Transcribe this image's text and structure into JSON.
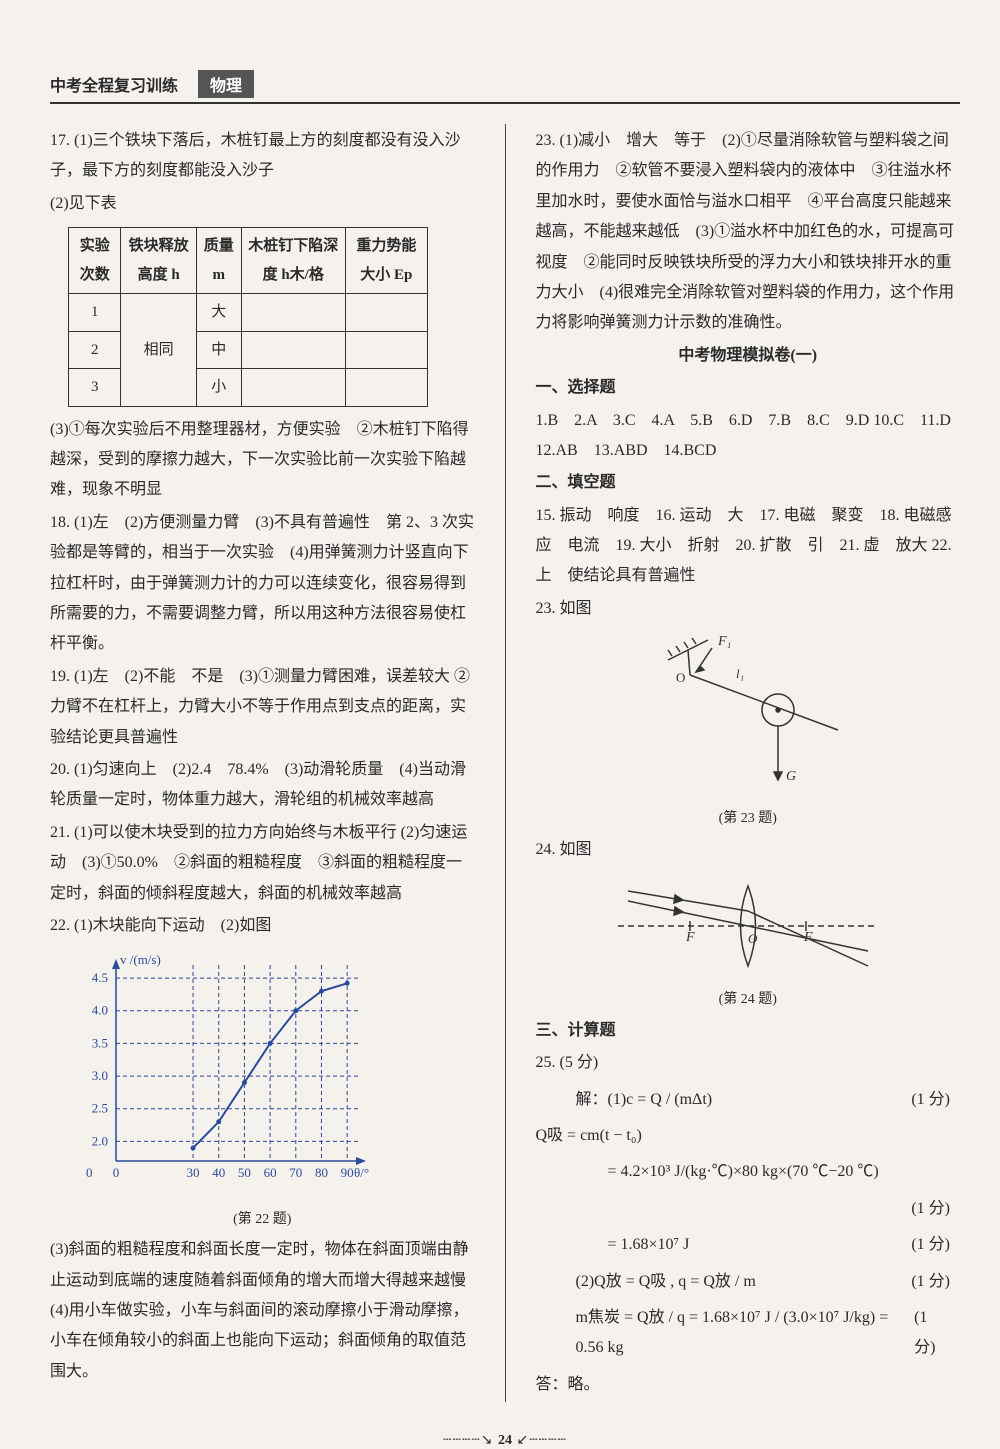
{
  "header": {
    "title": "中考全程复习训练",
    "subject": "物理"
  },
  "left": {
    "q17": {
      "p1": "17. (1)三个铁块下落后，木桩钉最上方的刻度都没有没入沙子，最下方的刻度都能没入沙子",
      "p2": "(2)见下表",
      "table": {
        "headers": [
          "实验次数",
          "铁块释放高度 h",
          "质量 m",
          "木桩钉下陷深度 h木/格",
          "重力势能大小 Ep"
        ],
        "rows": [
          [
            "1",
            "",
            "大",
            "",
            ""
          ],
          [
            "2",
            "相同",
            "中",
            "",
            ""
          ],
          [
            "3",
            "",
            "小",
            "",
            ""
          ]
        ]
      },
      "p3": "(3)①每次实验后不用整理器材，方便实验　②木桩钉下陷得越深，受到的摩擦力越大，下一次实验比前一次实验下陷越难，现象不明显"
    },
    "q18": "18. (1)左　(2)方便测量力臂　(3)不具有普遍性　第 2、3 次实验都是等臂的，相当于一次实验　(4)用弹簧测力计竖直向下拉杠杆时，由于弹簧测力计的力可以连续变化，很容易得到所需要的力，不需要调整力臂，所以用这种方法很容易使杠杆平衡。",
    "q19": "19. (1)左　(2)不能　不是　(3)①测量力臂困难，误差较大 ②力臂不在杠杆上，力臂大小不等于作用点到支点的距离，实验结论更具普遍性",
    "q20": "20. (1)匀速向上　(2)2.4　78.4%　(3)动滑轮质量　(4)当动滑轮质量一定时，物体重力越大，滑轮组的机械效率越高",
    "q21": "21. (1)可以使木块受到的拉力方向始终与木板平行 (2)匀速运动　(3)①50.0%　②斜面的粗糙程度　③斜面的粗糙程度一定时，斜面的倾斜程度越大，斜面的机械效率越高",
    "q22": {
      "p1": "22. (1)木块能向下运动　(2)如图",
      "chart": {
        "type": "line",
        "xlabel": "θ/°",
        "ylabel": "v /(m/s)",
        "xlim": [
          0,
          95
        ],
        "ylim": [
          1.7,
          4.7
        ],
        "xticks": [
          0,
          30,
          40,
          50,
          60,
          70,
          80,
          90
        ],
        "yticks": [
          2.0,
          2.5,
          3.0,
          3.5,
          4.0,
          4.5
        ],
        "axis_color": "#2a4a9a",
        "line_color": "#2a4a9a",
        "bg_color": "#f5f2ed",
        "points_x": [
          30,
          40,
          50,
          60,
          70,
          80,
          90
        ],
        "points_y": [
          1.9,
          2.3,
          2.9,
          3.5,
          4.0,
          4.3,
          4.42
        ],
        "line_width": 2,
        "font_size": 13
      },
      "caption": "(第 22 题)",
      "p2": "(3)斜面的粗糙程度和斜面长度一定时，物体在斜面顶端由静止运动到底端的速度随着斜面倾角的增大而增大得越来越慢　(4)用小车做实验，小车与斜面间的滚动摩擦小于滑动摩擦，小车在倾角较小的斜面上也能向下运动；斜面倾角的取值范围大。"
    }
  },
  "right": {
    "q23": "23. (1)减小　增大　等于　(2)①尽量消除软管与塑料袋之间的作用力　②软管不要浸入塑料袋内的液体中　③往溢水杯里加水时，要使水面恰与溢水口相平　④平台高度只能越来越高，不能越来越低　(3)①溢水杯中加红色的水，可提高可视度　②能同时反映铁块所受的浮力大小和铁块排开水的重力大小　(4)很难完全消除软管对塑料袋的作用力，这个作用力将影响弹簧测力计示数的准确性。",
    "exam_title": "中考物理模拟卷(一)",
    "sec1_title": "一、选择题",
    "sec1": "1.B　2.A　3.C　4.A　5.B　6.D　7.B　8.C　9.D 10.C　11.D　12.AB　13.ABD　14.BCD",
    "sec2_title": "二、填空题",
    "sec2": "15. 振动　响度　16. 运动　大　17. 电磁　聚变　18. 电磁感应　电流　19. 大小　折射　20. 扩散　引　21. 虚　放大 22. 上　使结论具有普遍性",
    "q23fig": {
      "label": "23. 如图",
      "caption": "(第 23 题)"
    },
    "q24fig": {
      "label": "24. 如图",
      "caption": "(第 24 题)"
    },
    "sec3_title": "三、计算题",
    "q25": {
      "head": "25. (5 分)",
      "l1": "解：(1)c = Q / (mΔt)",
      "s1": "(1 分)",
      "l2": "Q吸 = cm(t − t₀)",
      "l3": "　　= 4.2×10³ J/(kg·℃)×80 kg×(70 ℃−20 ℃)",
      "s3": "(1 分)",
      "l4": "　　= 1.68×10⁷ J",
      "s4": "(1 分)",
      "l5": "(2)Q放 = Q吸 , q = Q放 / m",
      "s5": "(1 分)",
      "l6": "m焦炭 = Q放 / q = 1.68×10⁷ J / (3.0×10⁷ J/kg) = 0.56 kg",
      "s6": "(1 分)",
      "ans": "答：略。"
    }
  },
  "page": "24"
}
